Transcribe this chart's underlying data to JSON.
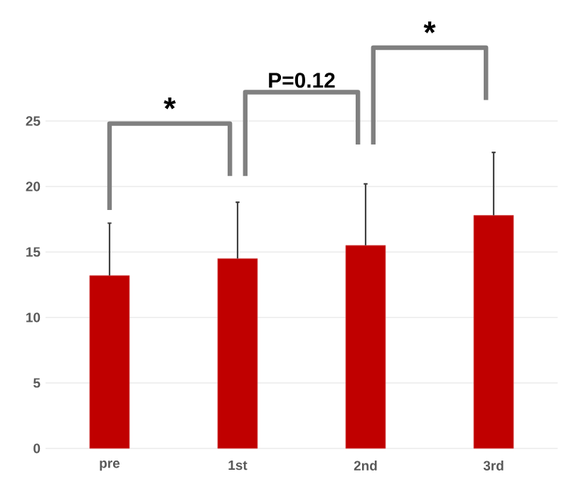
{
  "chart_data": {
    "type": "bar",
    "categories": [
      "pre",
      "1st",
      "2nd",
      "3rd"
    ],
    "values": [
      13.2,
      14.5,
      15.5,
      17.8
    ],
    "errors": [
      [
        13.2,
        17.2
      ],
      [
        14.5,
        18.8
      ],
      [
        15.5,
        20.2
      ],
      [
        17.8,
        22.6
      ]
    ],
    "color": "#c00000",
    "ylim": [
      0,
      25
    ],
    "yticks": [
      0,
      5,
      10,
      15,
      20,
      25
    ],
    "grid": "y",
    "annotations": [
      "*",
      "P=0.12",
      "*"
    ]
  }
}
